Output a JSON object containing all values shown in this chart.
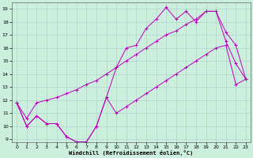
{
  "xlabel": "Windchill (Refroidissement éolien,°C)",
  "xlim": [
    -0.5,
    23.5
  ],
  "ylim": [
    8.8,
    19.5
  ],
  "yticks": [
    9,
    10,
    11,
    12,
    13,
    14,
    15,
    16,
    17,
    18,
    19
  ],
  "xticks": [
    0,
    1,
    2,
    3,
    4,
    5,
    6,
    7,
    8,
    9,
    10,
    11,
    12,
    13,
    14,
    15,
    16,
    17,
    18,
    19,
    20,
    21,
    22,
    23
  ],
  "bg_color": "#cceedd",
  "line_color": "#bb00bb",
  "line1_x": [
    0,
    1,
    2,
    3,
    4,
    5,
    6,
    7,
    8,
    9,
    10,
    11,
    12,
    13,
    14,
    15,
    16,
    17,
    18,
    19,
    20,
    21,
    22,
    23
  ],
  "line1_y": [
    11.8,
    10.0,
    10.8,
    10.2,
    10.2,
    9.2,
    8.8,
    8.8,
    10.0,
    12.2,
    14.5,
    16.0,
    16.2,
    17.5,
    18.2,
    19.1,
    18.2,
    18.8,
    18.0,
    18.8,
    18.8,
    16.5,
    14.8,
    13.6
  ],
  "line2_x": [
    0,
    1,
    2,
    3,
    4,
    5,
    6,
    7,
    8,
    9,
    10,
    11,
    12,
    13,
    14,
    15,
    16,
    17,
    18,
    19,
    20,
    21,
    22,
    23
  ],
  "line2_y": [
    11.8,
    10.6,
    11.8,
    12.0,
    12.2,
    12.5,
    12.8,
    13.2,
    13.5,
    14.0,
    14.5,
    15.0,
    15.5,
    16.0,
    16.5,
    17.0,
    17.3,
    17.8,
    18.2,
    18.8,
    18.8,
    17.2,
    16.2,
    13.6
  ],
  "line3_x": [
    0,
    1,
    2,
    3,
    4,
    5,
    6,
    7,
    8,
    9,
    10,
    11,
    12,
    13,
    14,
    15,
    16,
    17,
    18,
    19,
    20,
    21,
    22,
    23
  ],
  "line3_y": [
    11.8,
    10.0,
    10.8,
    10.2,
    10.2,
    9.2,
    8.8,
    8.8,
    10.0,
    12.2,
    11.0,
    11.5,
    12.0,
    12.5,
    13.0,
    13.5,
    14.0,
    14.5,
    15.0,
    15.5,
    16.0,
    16.2,
    13.2,
    13.6
  ]
}
